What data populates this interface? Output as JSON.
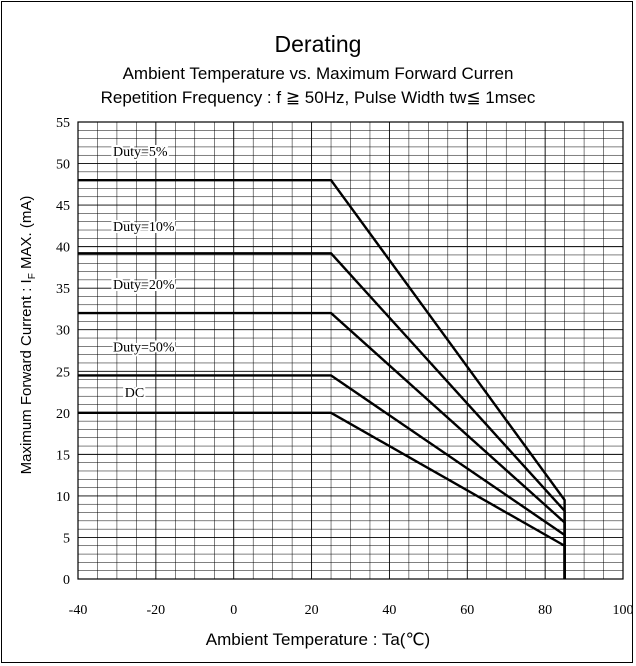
{
  "chart_data": {
    "type": "line",
    "title": "Derating",
    "subtitle": "Ambient Temperature vs. Maximum Forward Curren",
    "subtitle2": "Repetition Frequency : f ≧ 50Hz, Pulse Width tw≦ 1msec",
    "xlabel": "Ambient Temperature : Ta(℃)",
    "ylabel_prefix": "Maximum Forward Current : I",
    "ylabel_sub": "F",
    "ylabel_suffix": " MAX. (mA)",
    "xlim": [
      -40,
      100
    ],
    "ylim": [
      0,
      55
    ],
    "x_ticks": [
      "-40",
      "-20",
      "0",
      "20",
      "40",
      "60",
      "80",
      "100"
    ],
    "y_ticks": [
      "0",
      "5",
      "10",
      "15",
      "20",
      "25",
      "30",
      "35",
      "40",
      "45",
      "50",
      "55"
    ],
    "grid": true,
    "x_minor_step": 5,
    "y_minor_step": 1,
    "series": [
      {
        "name": "Duty=5%",
        "x": [
          -40,
          25,
          85,
          85
        ],
        "y": [
          48,
          48,
          9.5,
          0
        ]
      },
      {
        "name": "Duty=10%",
        "x": [
          -40,
          25,
          85,
          85
        ],
        "y": [
          39.2,
          39.2,
          8.2,
          0
        ]
      },
      {
        "name": "Duty=20%",
        "x": [
          -40,
          25,
          85,
          85
        ],
        "y": [
          32,
          32,
          6.8,
          0
        ]
      },
      {
        "name": "Duty=50%",
        "x": [
          -40,
          25,
          85,
          85
        ],
        "y": [
          24.5,
          24.5,
          5.3,
          0
        ]
      },
      {
        "name": "DC",
        "x": [
          -40,
          25,
          85,
          85
        ],
        "y": [
          20,
          20,
          4,
          0
        ]
      }
    ],
    "series_labels": [
      {
        "text": "Duty=5%",
        "x": -31,
        "y": 51.5
      },
      {
        "text": "Duty=10%",
        "x": -31,
        "y": 42.5
      },
      {
        "text": "Duty=20%",
        "x": -31,
        "y": 35.5
      },
      {
        "text": "Duty=50%",
        "x": -31,
        "y": 28
      },
      {
        "text": "DC",
        "x": -28,
        "y": 22.5
      }
    ]
  }
}
